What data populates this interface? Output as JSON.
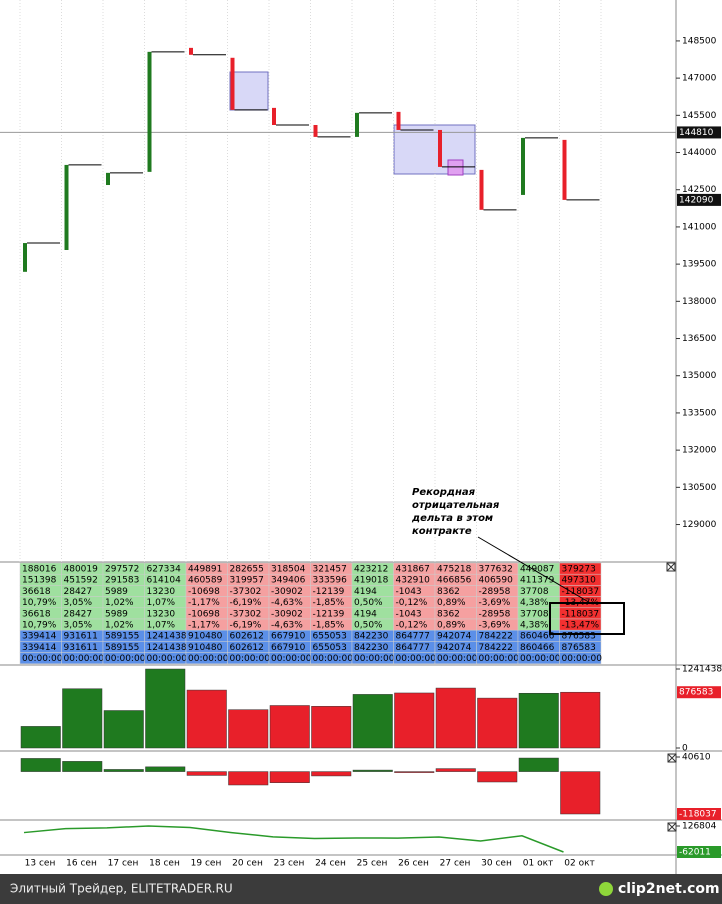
{
  "chart_data": [
    {
      "type": "candlestick",
      "categories": [
        "13 сен",
        "16 сен",
        "17 сен",
        "18 сен",
        "19 сен",
        "20 сен",
        "23 сен",
        "24 сен",
        "25 сен",
        "26 сен",
        "27 сен",
        "30 сен",
        "01 окт",
        "02 окт"
      ],
      "open": [
        139190,
        140070,
        142690,
        143220,
        148220,
        147820,
        145800,
        145110,
        144630,
        145640,
        144910,
        143300,
        142290,
        144510
      ],
      "close": [
        140350,
        143500,
        143180,
        148060,
        147940,
        145720,
        145110,
        144630,
        145600,
        144910,
        143420,
        141690,
        144590,
        142090
      ],
      "up_color": "#1f7a1f",
      "down_color": "#e8202a",
      "level": 144810,
      "ylim": [
        127570,
        150150
      ],
      "yticks": [
        148500,
        147000,
        145500,
        144000,
        142500,
        141000,
        139500,
        138000,
        136500,
        135000,
        133500,
        132000,
        130500,
        129000
      ],
      "grid": true
    },
    {
      "type": "bar",
      "values": [
        339414,
        931611,
        589155,
        1241438,
        910480,
        602612,
        667910,
        655053,
        842230,
        864777,
        942074,
        784222,
        860466,
        876583
      ],
      "ylim": [
        0,
        1241438
      ],
      "yticks": [
        1241438,
        0
      ]
    },
    {
      "type": "bar",
      "values": [
        36618,
        28427,
        5989,
        13230,
        -10698,
        -37302,
        -30902,
        -12139,
        4194,
        -1043,
        8362,
        -28958,
        37708,
        -118037
      ],
      "ylim": [
        -118037,
        40610
      ],
      "yticks": [
        40610
      ]
    },
    {
      "type": "line",
      "color": "#2a9a2a",
      "values": [
        79158,
        107585,
        113574,
        126804,
        116106,
        78804,
        47902,
        35763,
        39957,
        38914,
        47276,
        18318,
        56026,
        -62011
      ],
      "ylim": [
        -62011,
        126804
      ],
      "yticks": [
        126804
      ]
    }
  ],
  "table": {
    "rows": [
      [
        "188016",
        "480019",
        "297572",
        "627334",
        "449891",
        "282655",
        "318504",
        "321457",
        "423212",
        "431867",
        "475218",
        "377632",
        "449087",
        "379273"
      ],
      [
        "151398",
        "451592",
        "291583",
        "614104",
        "460589",
        "319957",
        "349406",
        "333596",
        "419018",
        "432910",
        "466856",
        "406590",
        "411379",
        "497310"
      ],
      [
        "36618",
        "28427",
        "5989",
        "13230",
        "-10698",
        "-37302",
        "-30902",
        "-12139",
        "4194",
        "-1043",
        "8362",
        "-28958",
        "37708",
        "-118037"
      ],
      [
        "10,79%",
        "3,05%",
        "1,02%",
        "1,07%",
        "-1,17%",
        "-6,19%",
        "-4,63%",
        "-1,85%",
        "0,50%",
        "-0,12%",
        "0,89%",
        "-3,69%",
        "4,38%",
        "-13,47%"
      ],
      [
        "36618",
        "28427",
        "5989",
        "13230",
        "-10698",
        "-37302",
        "-30902",
        "-12139",
        "4194",
        "-1043",
        "8362",
        "-28958",
        "37708",
        "-118037"
      ],
      [
        "10,79%",
        "3,05%",
        "1,02%",
        "1,07%",
        "-1,17%",
        "-6,19%",
        "-4,63%",
        "-1,85%",
        "0,50%",
        "-0,12%",
        "0,89%",
        "-3,69%",
        "4,38%",
        "-13,47%"
      ],
      [
        "339414",
        "931611",
        "589155",
        "1241438",
        "910480",
        "602612",
        "667910",
        "655053",
        "842230",
        "864777",
        "942074",
        "784222",
        "860466",
        "876583"
      ],
      [
        "339414",
        "931611",
        "589155",
        "1241438",
        "910480",
        "602612",
        "667910",
        "655053",
        "842230",
        "864777",
        "942074",
        "784222",
        "860466",
        "876583"
      ],
      [
        "00:00:00",
        "00:00:00",
        "00:00:00",
        "00:00:00",
        "00:00:00",
        "00:00:00",
        "00:00:00",
        "00:00:00",
        "00:00:00",
        "00:00:00",
        "00:00:00",
        "00:00:00",
        "00:00:00",
        "00:00:00"
      ]
    ]
  },
  "annotation": {
    "lines": [
      "Рекордная",
      "отрицательная",
      "дельта в этом",
      "контракте"
    ]
  },
  "footer": {
    "left": "Элитный Трейдер, ELITETRADER.RU",
    "right": "clip2net.com"
  }
}
